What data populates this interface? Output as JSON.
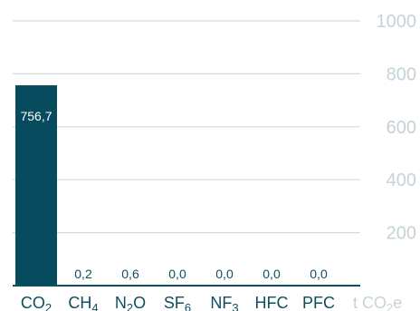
{
  "chart_data": {
    "type": "bar",
    "categories": [
      {
        "base": "CO",
        "sub": "2"
      },
      {
        "base": "CH",
        "sub": "4"
      },
      {
        "base": "N",
        "sub": "2",
        "tail": "O"
      },
      {
        "base": "SF",
        "sub": "6"
      },
      {
        "base": "NF",
        "sub": "3"
      },
      {
        "base": "HFC"
      },
      {
        "base": "PFC"
      }
    ],
    "values": [
      756.7,
      0.2,
      0.6,
      0.0,
      0.0,
      0.0,
      0.0
    ],
    "value_labels": [
      "756,7",
      "0,2",
      "0,6",
      "0,0",
      "0,0",
      "0,0",
      "0,0"
    ],
    "y_ticks": [
      200,
      400,
      600,
      800,
      1000
    ],
    "ylim": [
      0,
      1000
    ],
    "unit": {
      "prefix": "t CO",
      "sub": "2",
      "suffix": "e"
    },
    "grid": true
  },
  "colors": {
    "bar": "#074b5e",
    "grid": "#cfdcdc",
    "tick_label": "#c5d3d8",
    "category_label": "#0d4f5c",
    "value_label_inside": "#ffffff",
    "value_label_outside": "#0d4f5c"
  }
}
